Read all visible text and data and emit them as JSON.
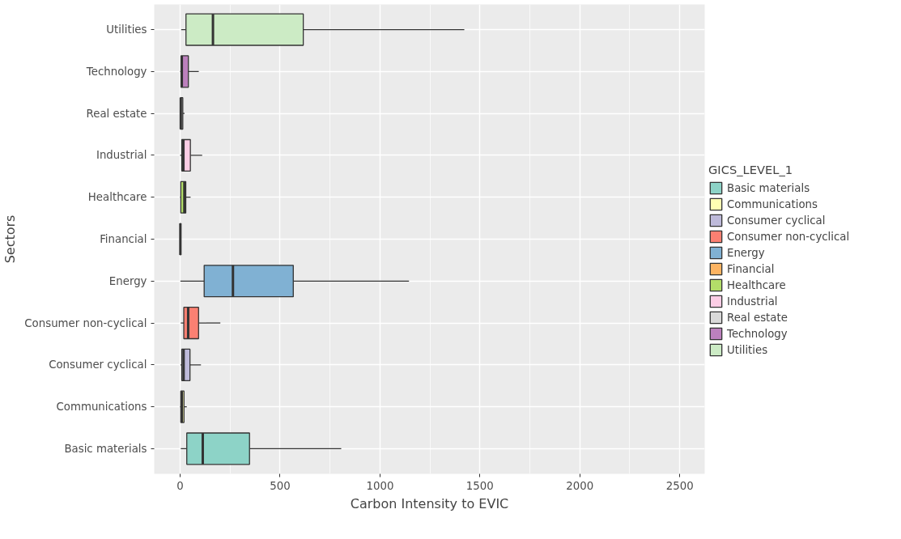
{
  "chart_data": {
    "type": "box",
    "orientation": "horizontal",
    "xlabel": "Carbon Intensity to EVIC",
    "ylabel": "Sectors",
    "legend_title": "GICS_LEVEL_1",
    "legend": "right",
    "grid": true,
    "categories": [
      "Utilities",
      "Technology",
      "Real estate",
      "Industrial",
      "Healthcare",
      "Financial",
      "Energy",
      "Consumer non-cyclical",
      "Consumer cyclical",
      "Communications",
      "Basic materials"
    ],
    "series": [
      {
        "name": "Basic materials",
        "color": "#8dd3c7",
        "boxes": [
          null,
          null,
          null,
          null,
          null,
          null,
          null,
          null,
          null,
          null,
          {
            "low": 3,
            "q1": 33,
            "median": 113,
            "q3": 347,
            "high": 806
          }
        ]
      },
      {
        "name": "Communications",
        "color": "#ffffb3",
        "boxes": [
          null,
          null,
          null,
          null,
          null,
          null,
          null,
          null,
          null,
          {
            "low": 0,
            "q1": 3,
            "median": 8,
            "q3": 19,
            "high": 33
          },
          null
        ]
      },
      {
        "name": "Consumer cyclical",
        "color": "#bebada",
        "boxes": [
          null,
          null,
          null,
          null,
          null,
          null,
          null,
          null,
          {
            "low": 2,
            "q1": 8,
            "median": 17,
            "q3": 49,
            "high": 104
          },
          null,
          null
        ]
      },
      {
        "name": "Consumer non-cyclical",
        "color": "#fb8072",
        "boxes": [
          null,
          null,
          null,
          null,
          null,
          null,
          null,
          {
            "low": 3,
            "q1": 18,
            "median": 40,
            "q3": 92,
            "high": 201
          },
          null,
          null,
          null
        ]
      },
      {
        "name": "Energy",
        "color": "#80b1d3",
        "boxes": [
          null,
          null,
          null,
          null,
          null,
          null,
          {
            "low": 1,
            "q1": 120,
            "median": 264,
            "q3": 566,
            "high": 1145
          },
          null,
          null,
          null,
          null
        ]
      },
      {
        "name": "Financial",
        "color": "#fdb462",
        "boxes": [
          null,
          null,
          null,
          null,
          null,
          {
            "low": 0,
            "q1": 0,
            "median": 1,
            "q3": 3,
            "high": 4
          },
          null,
          null,
          null,
          null,
          null
        ]
      },
      {
        "name": "Healthcare",
        "color": "#b3de69",
        "boxes": [
          null,
          null,
          null,
          null,
          {
            "low": 0,
            "q1": 3,
            "median": 21,
            "q3": 28,
            "high": 52
          },
          null,
          null,
          null,
          null,
          null,
          null
        ]
      },
      {
        "name": "Industrial",
        "color": "#fccde5",
        "boxes": [
          null,
          null,
          null,
          {
            "low": 0,
            "q1": 8,
            "median": 16,
            "q3": 51,
            "high": 110
          },
          null,
          null,
          null,
          null,
          null,
          null,
          null
        ]
      },
      {
        "name": "Real estate",
        "color": "#d9d9d9",
        "boxes": [
          null,
          null,
          {
            "low": 0,
            "q1": 1,
            "median": 3,
            "q3": 13,
            "high": 22
          },
          null,
          null,
          null,
          null,
          null,
          null,
          null,
          null
        ]
      },
      {
        "name": "Technology",
        "color": "#bc80bd",
        "boxes": [
          null,
          {
            "low": 0,
            "q1": 4,
            "median": 8,
            "q3": 41,
            "high": 93
          },
          null,
          null,
          null,
          null,
          null,
          null,
          null,
          null,
          null
        ]
      },
      {
        "name": "Utilities",
        "color": "#ccebc5",
        "boxes": [
          {
            "low": 5,
            "q1": 29,
            "median": 164,
            "q3": 616,
            "high": 1422
          },
          null,
          null,
          null,
          null,
          null,
          null,
          null,
          null,
          null,
          null
        ]
      }
    ],
    "xlim": [
      -130,
      2625
    ],
    "xticks": [
      0,
      500,
      1000,
      1500,
      2000,
      2500
    ]
  }
}
